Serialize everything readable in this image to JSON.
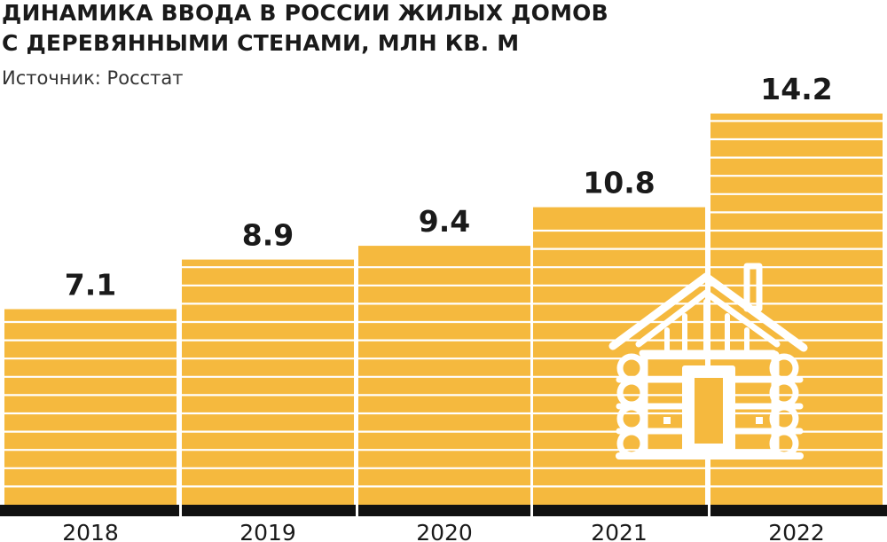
{
  "header": {
    "title_line1": "ДИНАМИКА ВВОДА В РОССИИ ЖИЛЫХ ДОМОВ",
    "title_line2": "С ДЕРЕВЯННЫМИ СТЕНАМИ, МЛН КВ. М",
    "source": "Источник: Росстат"
  },
  "colors": {
    "bar": "#F5B93E",
    "bar_stripe": "#FFFFFF",
    "baseline": "#111111",
    "icon": "#FFFFFF"
  },
  "icon": {
    "name": "log-cabin-icon"
  },
  "chart_data": {
    "type": "bar",
    "title": "ДИНАМИКА ВВОДА В РОССИИ ЖИЛЫХ ДОМОВ С ДЕРЕВЯННЫМИ СТЕНАМИ, МЛН КВ. М",
    "categories": [
      "2018",
      "2019",
      "2020",
      "2021",
      "2022"
    ],
    "values": [
      7.1,
      8.9,
      9.4,
      10.8,
      14.2
    ],
    "value_labels": [
      "7.1",
      "8.9",
      "9.4",
      "10.8",
      "14.2"
    ],
    "xlabel": "",
    "ylabel": "",
    "ylim": [
      0,
      14.2
    ],
    "grid": false,
    "legend": "none"
  }
}
